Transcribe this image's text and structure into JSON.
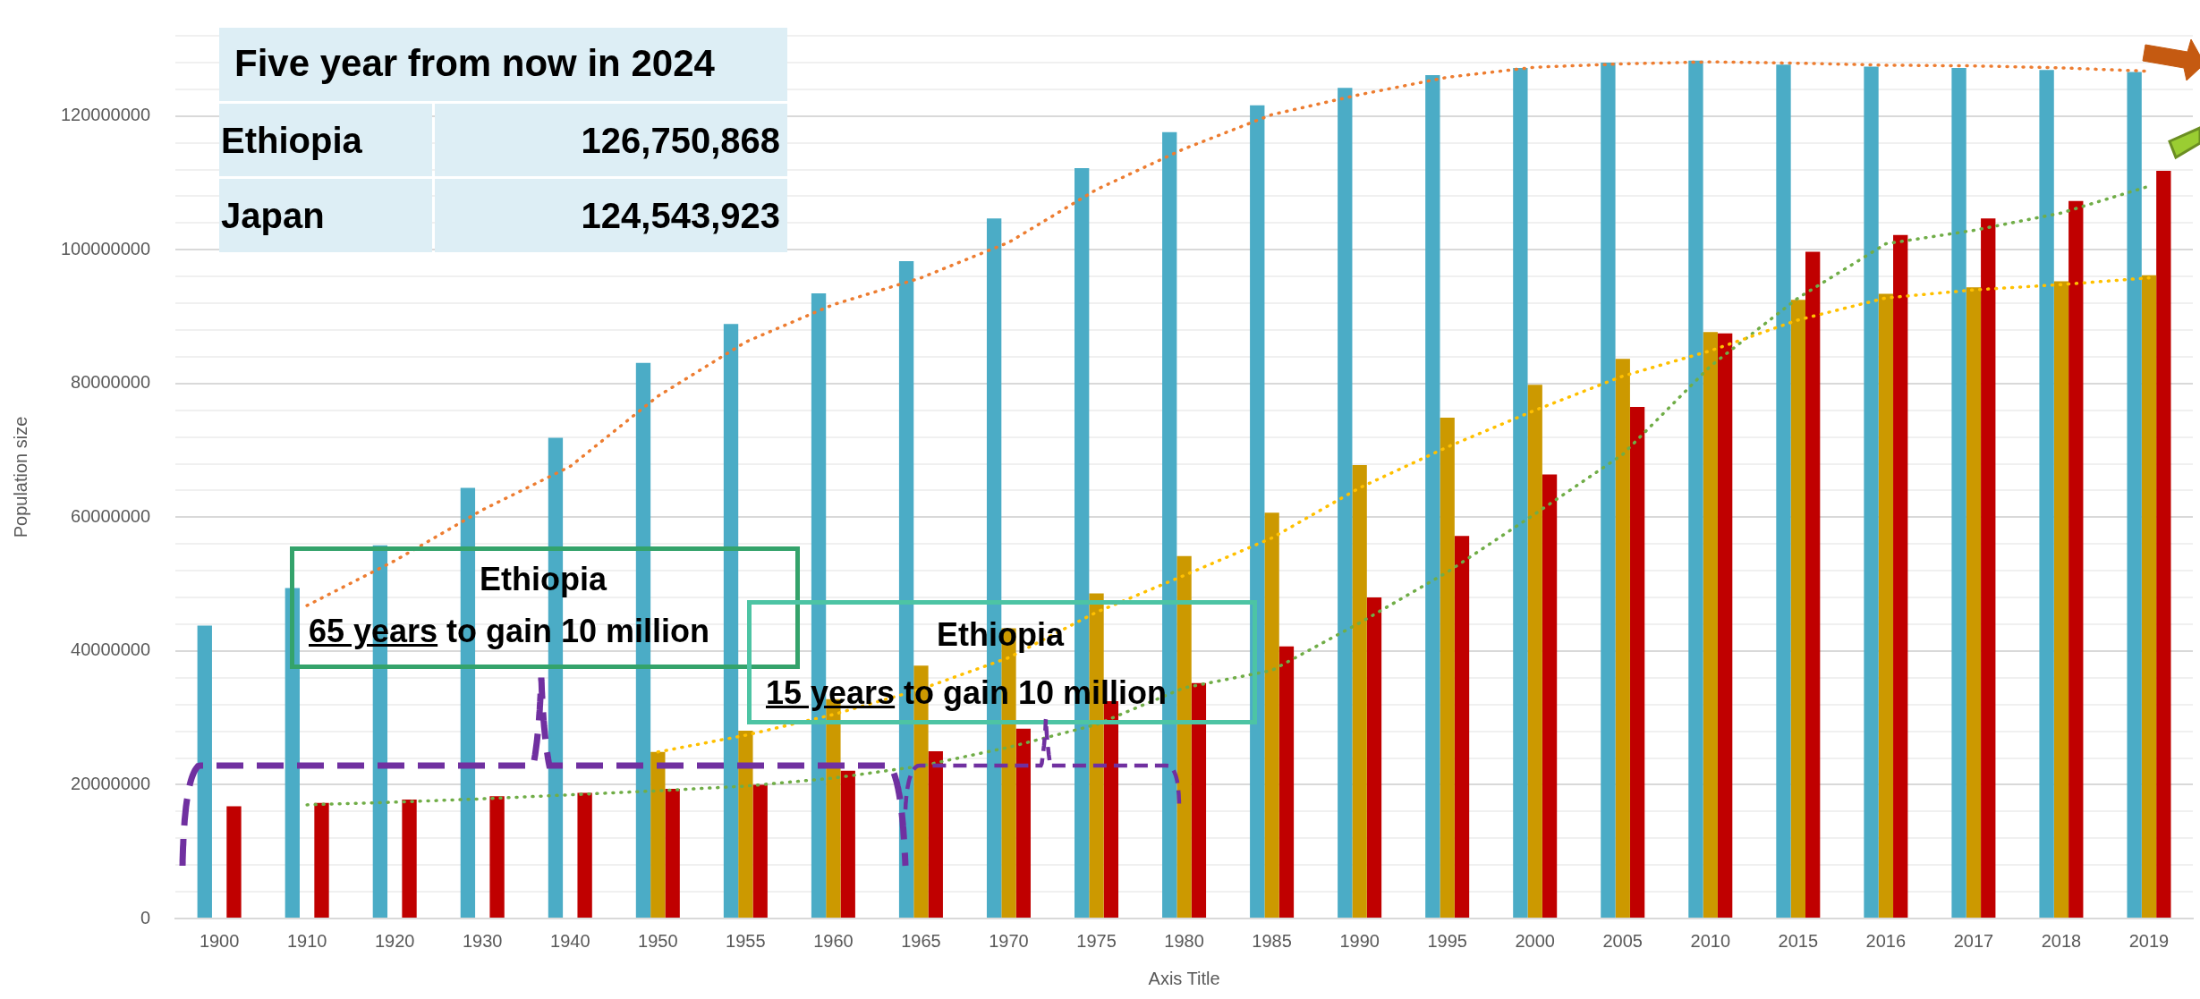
{
  "chart_data": {
    "type": "bar",
    "xlabel": "Axis Title",
    "ylabel": "Population size",
    "categories": [
      "1900",
      "1910",
      "1920",
      "1930",
      "1940",
      "1950",
      "1955",
      "1960",
      "1965",
      "1970",
      "1975",
      "1980",
      "1985",
      "1990",
      "1995",
      "2000",
      "2005",
      "2010",
      "2015",
      "2016",
      "2017",
      "2018",
      "2019"
    ],
    "series": [
      {
        "color": "#4bacc6",
        "values": [
          43800000,
          49400000,
          55800000,
          64400000,
          71900000,
          83100000,
          88900000,
          93500000,
          98300000,
          104700000,
          112200000,
          117600000,
          121600000,
          124200000,
          126100000,
          127200000,
          128000000,
          128300000,
          127700000,
          127400000,
          127200000,
          126900000,
          126600000
        ]
      },
      {
        "color": "#cc9900",
        "values": [
          null,
          null,
          null,
          null,
          null,
          24900000,
          28100000,
          32800000,
          37800000,
          43400000,
          48600000,
          54200000,
          60700000,
          67800000,
          74900000,
          79800000,
          83700000,
          87700000,
          92500000,
          93400000,
          94400000,
          95300000,
          96200000
        ]
      },
      {
        "color": "#c00000",
        "values": [
          16800000,
          17300000,
          17800000,
          18300000,
          18800000,
          19400000,
          20000000,
          22100000,
          25000000,
          28400000,
          32500000,
          35200000,
          40700000,
          48000000,
          57200000,
          66400000,
          76500000,
          87500000,
          99700000,
          102200000,
          104700000,
          107300000,
          111800000
        ]
      },
      {
        "type": "line",
        "color": "#ed7d31",
        "line_style": "dotted",
        "values": [
          null,
          46800000,
          53500000,
          61100000,
          67600000,
          78100000,
          86200000,
          91800000,
          95800000,
          101100000,
          109000000,
          115100000,
          120200000,
          123200000,
          125800000,
          127300000,
          127800000,
          128100000,
          127900000,
          127600000,
          127500000,
          127200000,
          126700000
        ]
      },
      {
        "type": "line",
        "color": "#ffc000",
        "line_style": "dotted",
        "values": [
          null,
          null,
          null,
          null,
          null,
          24900000,
          27400000,
          30500000,
          34300000,
          39000000,
          45800000,
          51300000,
          56900000,
          64400000,
          70500000,
          76000000,
          81100000,
          84900000,
          89500000,
          92800000,
          94000000,
          94800000,
          95800000
        ]
      },
      {
        "type": "line",
        "color": "#70ad47",
        "line_style": "dotted",
        "values": [
          null,
          17000000,
          17400000,
          17900000,
          18500000,
          19100000,
          19800000,
          21000000,
          22800000,
          25600000,
          29000000,
          34500000,
          37100000,
          44200000,
          51800000,
          60500000,
          69400000,
          82600000,
          92800000,
          100900000,
          102900000,
          105500000,
          109500000
        ]
      }
    ],
    "ylim": [
      0,
      132000000
    ],
    "yticks": [
      0,
      {
        "value": 4000000,
        "label": null
      },
      {
        "value": 8000000,
        "label": null
      },
      {
        "value": 12000000,
        "label": null
      },
      {
        "value": 16000000,
        "label": null
      },
      20000000,
      {
        "value": 24000000,
        "label": null
      },
      {
        "value": 28000000,
        "label": null
      },
      {
        "value": 32000000,
        "label": null
      },
      {
        "value": 36000000,
        "label": null
      },
      40000000,
      {
        "value": 44000000,
        "label": null
      },
      {
        "value": 48000000,
        "label": null
      },
      {
        "value": 52000000,
        "label": null
      },
      {
        "value": 56000000,
        "label": null
      },
      60000000,
      {
        "value": 64000000,
        "label": null
      },
      {
        "value": 68000000,
        "label": null
      },
      {
        "value": 72000000,
        "label": null
      },
      {
        "value": 76000000,
        "label": null
      },
      80000000,
      {
        "value": 84000000,
        "label": null
      },
      {
        "value": 88000000,
        "label": null
      },
      {
        "value": 92000000,
        "label": null
      },
      {
        "value": 96000000,
        "label": null
      },
      100000000,
      {
        "value": 104000000,
        "label": null
      },
      {
        "value": 108000000,
        "label": null
      },
      {
        "value": 112000000,
        "label": null
      },
      {
        "value": 116000000,
        "label": null
      },
      120000000,
      {
        "value": 124000000,
        "label": null
      },
      {
        "value": 128000000,
        "label": null
      },
      {
        "value": 132000000,
        "label": null
      }
    ],
    "grid": "y",
    "legend": false,
    "marker": "none",
    "annotations": [
      "Five year from now in 2024",
      "Ethiopia",
      "126,750,868",
      "Japan",
      "124,543,923",
      "Ethiopia",
      "65 years",
      "to gain 10 million",
      "Ethiopia",
      "15 years",
      "to gain 10 million"
    ]
  }
}
